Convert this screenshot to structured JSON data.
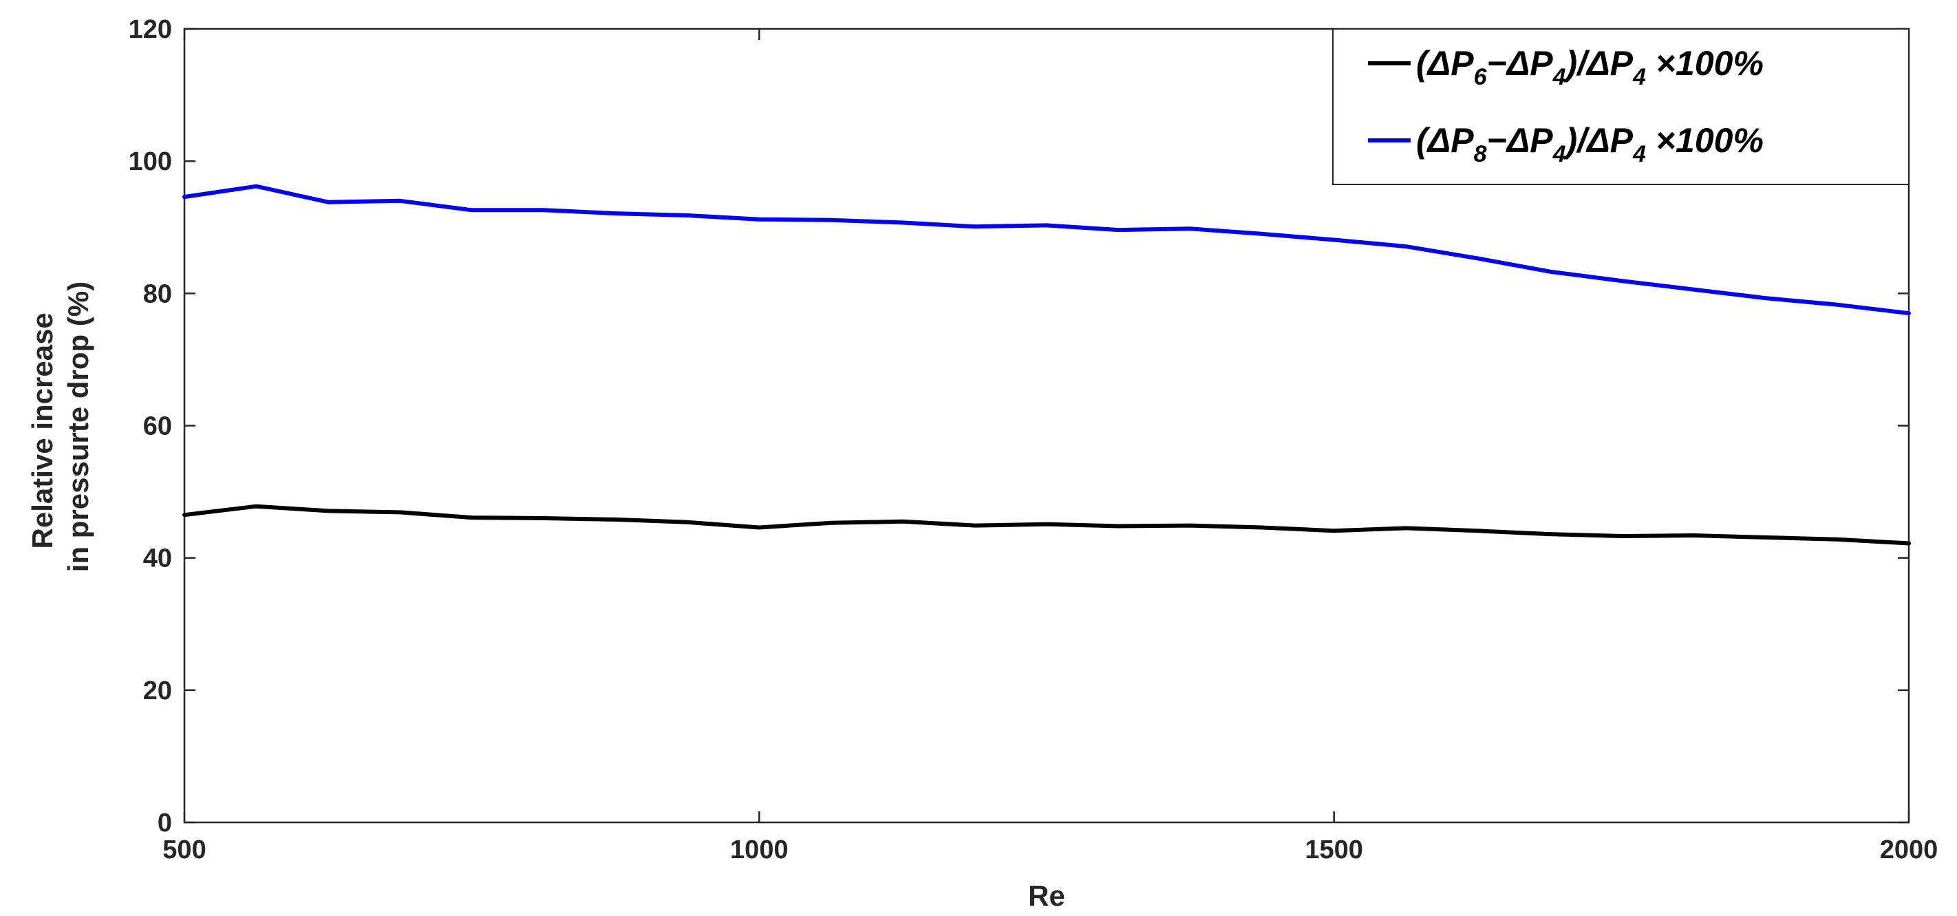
{
  "chart_data": {
    "type": "line",
    "title": "",
    "xlabel": "Re",
    "ylabel_lines": [
      "Relative increase",
      "in pressurte drop (%)"
    ],
    "xlim": [
      500,
      2000
    ],
    "ylim": [
      0,
      120
    ],
    "xticks": [
      500,
      1000,
      1500,
      2000
    ],
    "yticks": [
      0,
      20,
      40,
      60,
      80,
      100,
      120
    ],
    "grid": false,
    "legend_position": "top-right",
    "x": [
      500,
      562.5,
      625,
      687.5,
      750,
      812.5,
      875,
      937.5,
      1000,
      1062.5,
      1125,
      1187.5,
      1250,
      1312.5,
      1375,
      1437.5,
      1500,
      1562.5,
      1625,
      1687.5,
      1750,
      1812.5,
      1875,
      1937.5,
      2000
    ],
    "series": [
      {
        "name_parts": [
          "(ΔP",
          "6",
          "−ΔP",
          "4",
          ")/ΔP",
          "4",
          " ×100%"
        ],
        "color": "#000000",
        "values": [
          46.5,
          47.8,
          47.1,
          46.9,
          46.1,
          46.0,
          45.8,
          45.4,
          44.6,
          45.3,
          45.5,
          44.9,
          45.1,
          44.8,
          44.9,
          44.6,
          44.1,
          44.5,
          44.1,
          43.6,
          43.3,
          43.4,
          43.1,
          42.8,
          42.2
        ]
      },
      {
        "name_parts": [
          "(ΔP",
          "8",
          "−ΔP",
          "4",
          ")/ΔP",
          "4",
          " ×100%"
        ],
        "color": "#0000ff",
        "values": [
          94.6,
          96.2,
          93.8,
          94.0,
          92.6,
          92.6,
          92.1,
          91.8,
          91.2,
          91.1,
          90.7,
          90.1,
          90.3,
          89.6,
          89.8,
          89.0,
          88.1,
          87.1,
          85.3,
          83.3,
          81.9,
          80.6,
          79.3,
          78.3,
          77.0
        ]
      }
    ]
  }
}
